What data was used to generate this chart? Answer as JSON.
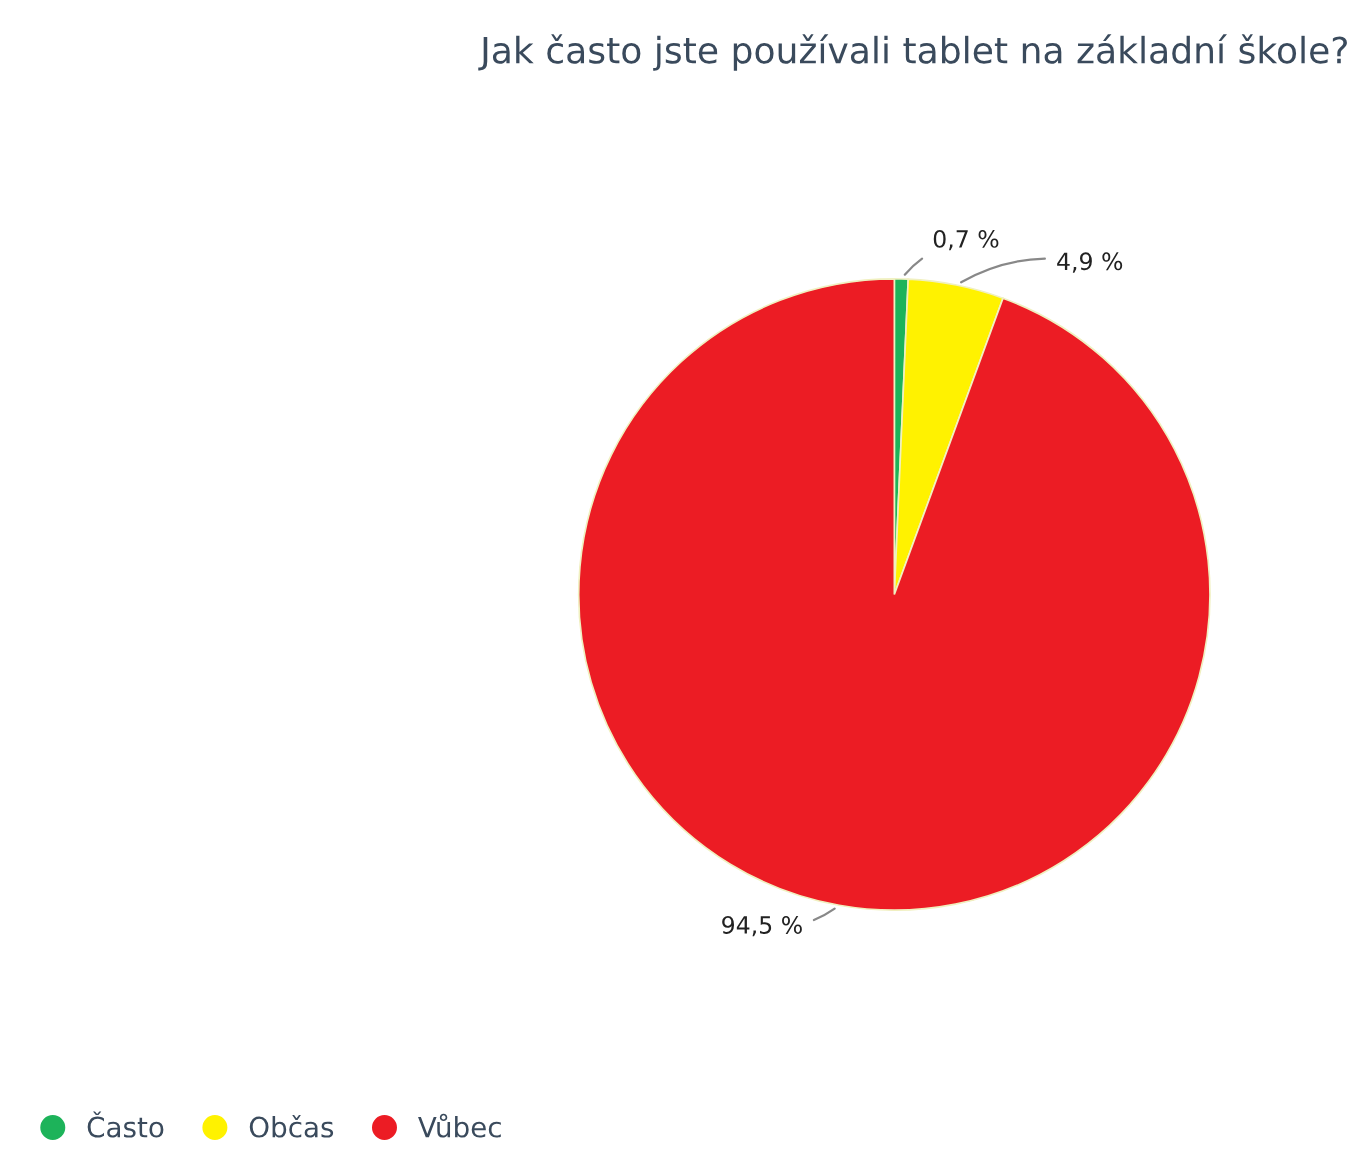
{
  "chart_data": {
    "type": "pie",
    "title": "Jak často jste používali tablet na základní škole?",
    "categories": [
      "Často",
      "Občas",
      "Vůbec"
    ],
    "values": [
      0.7,
      4.9,
      94.5
    ],
    "colors": [
      "#1db35a",
      "#fff200",
      "#ec1c24"
    ],
    "value_labels": [
      "0,7 %",
      "4,9 %",
      "94,5 %"
    ],
    "legend": "bottom left"
  }
}
